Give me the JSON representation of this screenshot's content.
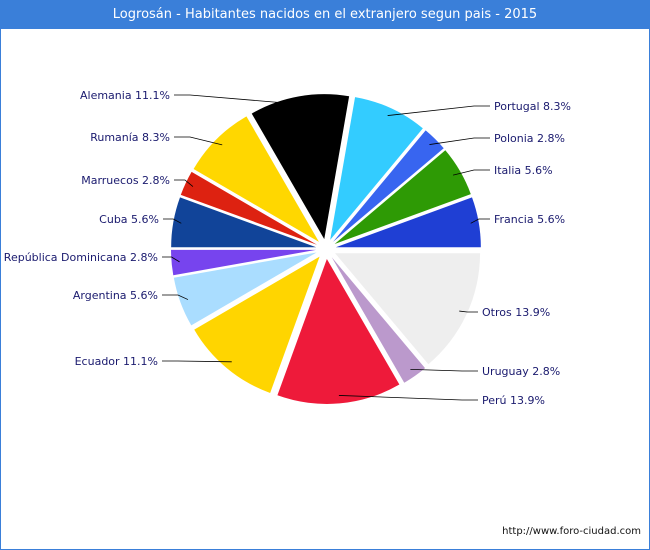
{
  "chart_data": {
    "type": "pie",
    "title": "Logrosán - Habitantes nacidos en el extranjero segun pais - 2015",
    "slices": [
      {
        "name": "Francia",
        "value": 5.6,
        "label": "Francia 5.6%",
        "color": "#1f3fd4"
      },
      {
        "name": "Italia",
        "value": 5.6,
        "label": "Italia 5.6%",
        "color": "#2e9a05"
      },
      {
        "name": "Polonia",
        "value": 2.8,
        "label": "Polonia 2.8%",
        "color": "#3865f0"
      },
      {
        "name": "Portugal",
        "value": 8.3,
        "label": "Portugal 8.3%",
        "color": "#33ccff"
      },
      {
        "name": "Alemania",
        "value": 11.1,
        "label": "Alemania 11.1%",
        "color": "#000000"
      },
      {
        "name": "Rumanía",
        "value": 8.3,
        "label": "Rumanía 8.3%",
        "color": "#ffd700"
      },
      {
        "name": "Marruecos",
        "value": 2.8,
        "label": "Marruecos 2.8%",
        "color": "#dd2211"
      },
      {
        "name": "Cuba",
        "value": 5.6,
        "label": "Cuba 5.6%",
        "color": "#114499"
      },
      {
        "name": "República Dominicana",
        "value": 2.8,
        "label": "República Dominicana 2.8%",
        "color": "#7744ee"
      },
      {
        "name": "Argentina",
        "value": 5.6,
        "label": "Argentina 5.6%",
        "color": "#aaddff"
      },
      {
        "name": "Ecuador",
        "value": 11.1,
        "label": "Ecuador 11.1%",
        "color": "#ffd500"
      },
      {
        "name": "Perú",
        "value": 13.9,
        "label": "Perú 13.9%",
        "color": "#ee1a3a"
      },
      {
        "name": "Uruguay",
        "value": 2.8,
        "label": "Uruguay 2.8%",
        "color": "#bb99cc"
      },
      {
        "name": "Otros",
        "value": 13.9,
        "label": "Otros 13.9%",
        "color": "#eeeeee"
      }
    ]
  },
  "footer": {
    "source": "http://www.foro-ciudad.com"
  }
}
